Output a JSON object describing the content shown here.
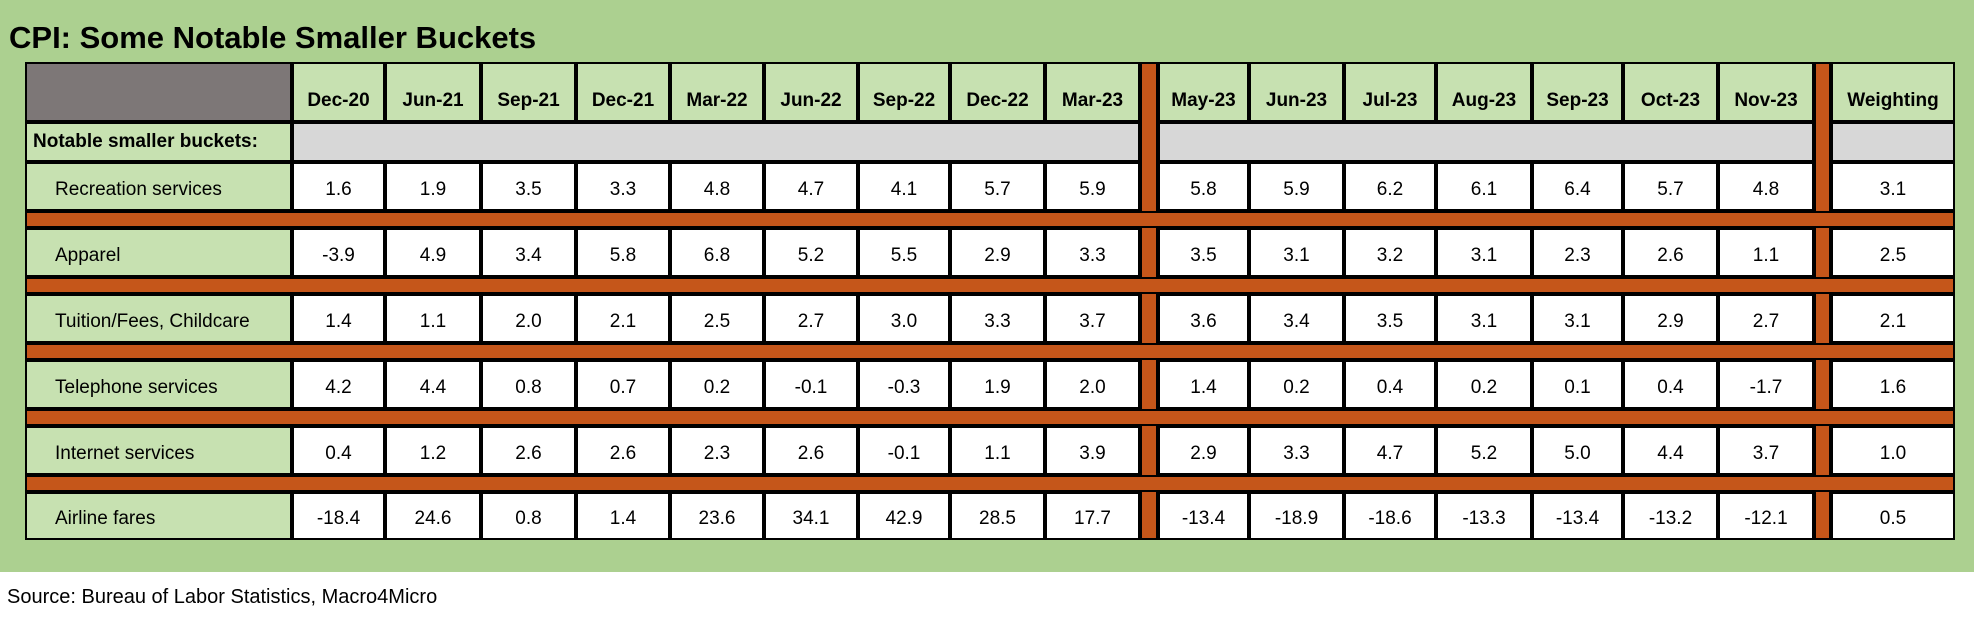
{
  "title": "CPI: Some Notable Smaller Buckets",
  "chart_data": {
    "type": "table",
    "columns": [
      "Dec-20",
      "Jun-21",
      "Sep-21",
      "Dec-21",
      "Mar-22",
      "Jun-22",
      "Sep-22",
      "Dec-22",
      "Mar-23",
      "May-23",
      "Jun-23",
      "Jul-23",
      "Aug-23",
      "Sep-23",
      "Oct-23",
      "Nov-23",
      "Weighting"
    ],
    "section_label": "Notable smaller buckets:",
    "rows": [
      {
        "label": "Recreation services",
        "values": [
          "1.6",
          "1.9",
          "3.5",
          "3.3",
          "4.8",
          "4.7",
          "4.1",
          "5.7",
          "5.9",
          "5.8",
          "5.9",
          "6.2",
          "6.1",
          "6.4",
          "5.7",
          "4.8",
          "3.1"
        ]
      },
      {
        "label": "Apparel",
        "values": [
          "-3.9",
          "4.9",
          "3.4",
          "5.8",
          "6.8",
          "5.2",
          "5.5",
          "2.9",
          "3.3",
          "3.5",
          "3.1",
          "3.2",
          "3.1",
          "2.3",
          "2.6",
          "1.1",
          "2.5"
        ]
      },
      {
        "label": "Tuition/Fees, Childcare",
        "values": [
          "1.4",
          "1.1",
          "2.0",
          "2.1",
          "2.5",
          "2.7",
          "3.0",
          "3.3",
          "3.7",
          "3.6",
          "3.4",
          "3.5",
          "3.1",
          "3.1",
          "2.9",
          "2.7",
          "2.1"
        ]
      },
      {
        "label": "Telephone services",
        "values": [
          "4.2",
          "4.4",
          "0.8",
          "0.7",
          "0.2",
          "-0.1",
          "-0.3",
          "1.9",
          "2.0",
          "1.4",
          "0.2",
          "0.4",
          "0.2",
          "0.1",
          "0.4",
          "-1.7",
          "1.6"
        ]
      },
      {
        "label": "Internet services",
        "values": [
          "0.4",
          "1.2",
          "2.6",
          "2.6",
          "2.3",
          "2.6",
          "-0.1",
          "1.1",
          "3.9",
          "2.9",
          "3.3",
          "4.7",
          "5.2",
          "5.0",
          "4.4",
          "3.7",
          "1.0"
        ]
      },
      {
        "label": "Airline fares",
        "values": [
          "-18.4",
          "24.6",
          "0.8",
          "1.4",
          "23.6",
          "34.1",
          "42.9",
          "28.5",
          "17.7",
          "-13.4",
          "-18.9",
          "-18.6",
          "-13.3",
          "-13.4",
          "-13.2",
          "-12.1",
          "0.5"
        ]
      }
    ]
  },
  "source": "Source: Bureau of Labor Statistics, Macro4Micro",
  "colors": {
    "panel": "#acd090",
    "label_fill": "#c7e1b1",
    "band": "#c5561a",
    "corner": "#7d7777",
    "grey": "#d7d7d7"
  }
}
